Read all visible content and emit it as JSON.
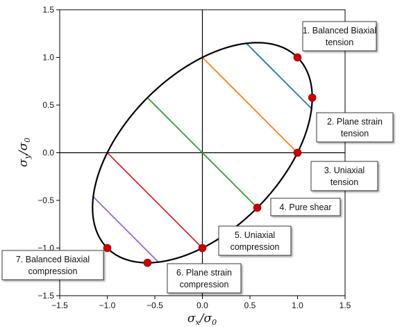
{
  "chart_data": {
    "type": "scatter",
    "title": "",
    "xlabel": {
      "main": "σ",
      "sub": "x",
      "slash": "/σ",
      "sub2": "0"
    },
    "ylabel": {
      "main": "σ",
      "sub": "y",
      "slash": "/σ",
      "sub2": "0"
    },
    "xlim": [
      -1.5,
      1.5
    ],
    "ylim": [
      -1.5,
      1.5
    ],
    "x_ticks": [
      -1.5,
      -1.0,
      -0.5,
      0.0,
      0.5,
      1.0,
      1.5
    ],
    "y_ticks": [
      -1.5,
      -1.0,
      -0.5,
      0.0,
      0.5,
      1.0,
      1.5
    ],
    "x_tick_labels": [
      "−1.5",
      "−1.0",
      "−0.5",
      "0.0",
      "0.5",
      "1.0",
      "1.5"
    ],
    "y_tick_labels": [
      "−1.5",
      "−1.0",
      "−0.5",
      "0.0",
      "0.5",
      "1.0",
      "1.5"
    ],
    "grid": false,
    "yield_locus": "von Mises ellipse: x^2 - x*y + y^2 = 1",
    "stress_states": [
      {
        "label_lines": [
          "1. Balanced Biaxial",
          "tension"
        ],
        "x": 1.0,
        "y": 1.0
      },
      {
        "label_lines": [
          "2. Plane strain",
          "tension"
        ],
        "x": 1.155,
        "y": 0.577
      },
      {
        "label_lines": [
          "3. Uniaxial",
          "tension"
        ],
        "x": 1.0,
        "y": 0.0
      },
      {
        "label_lines": [
          "4. Pure shear"
        ],
        "x": 0.577,
        "y": -0.577
      },
      {
        "label_lines": [
          "5. Uniaxial",
          "compression"
        ],
        "x": 0.0,
        "y": -1.0
      },
      {
        "label_lines": [
          "6. Plane strain",
          "compression"
        ],
        "x": -0.577,
        "y": -1.155
      },
      {
        "label_lines": [
          "7. Balanced Biaxial",
          "compression"
        ],
        "x": -1.0,
        "y": -1.0
      }
    ],
    "chords": [
      {
        "color": "#1f77b4",
        "from": [
          0.455,
          1.155
        ],
        "to": [
          1.155,
          0.455
        ]
      },
      {
        "color": "#ff7f0e",
        "from": [
          0.0,
          1.0
        ],
        "to": [
          1.0,
          0.0
        ]
      },
      {
        "color": "#2ca02c",
        "from": [
          -0.577,
          0.577
        ],
        "to": [
          0.577,
          -0.577
        ]
      },
      {
        "color": "#d62728",
        "from": [
          -1.0,
          0.0
        ],
        "to": [
          0.0,
          -1.0
        ]
      },
      {
        "color": "#9467bd",
        "from": [
          -1.155,
          -0.455
        ],
        "to": [
          -0.455,
          -1.155
        ]
      }
    ],
    "marker_color": "#cc0000",
    "ellipse_color": "#000000"
  }
}
